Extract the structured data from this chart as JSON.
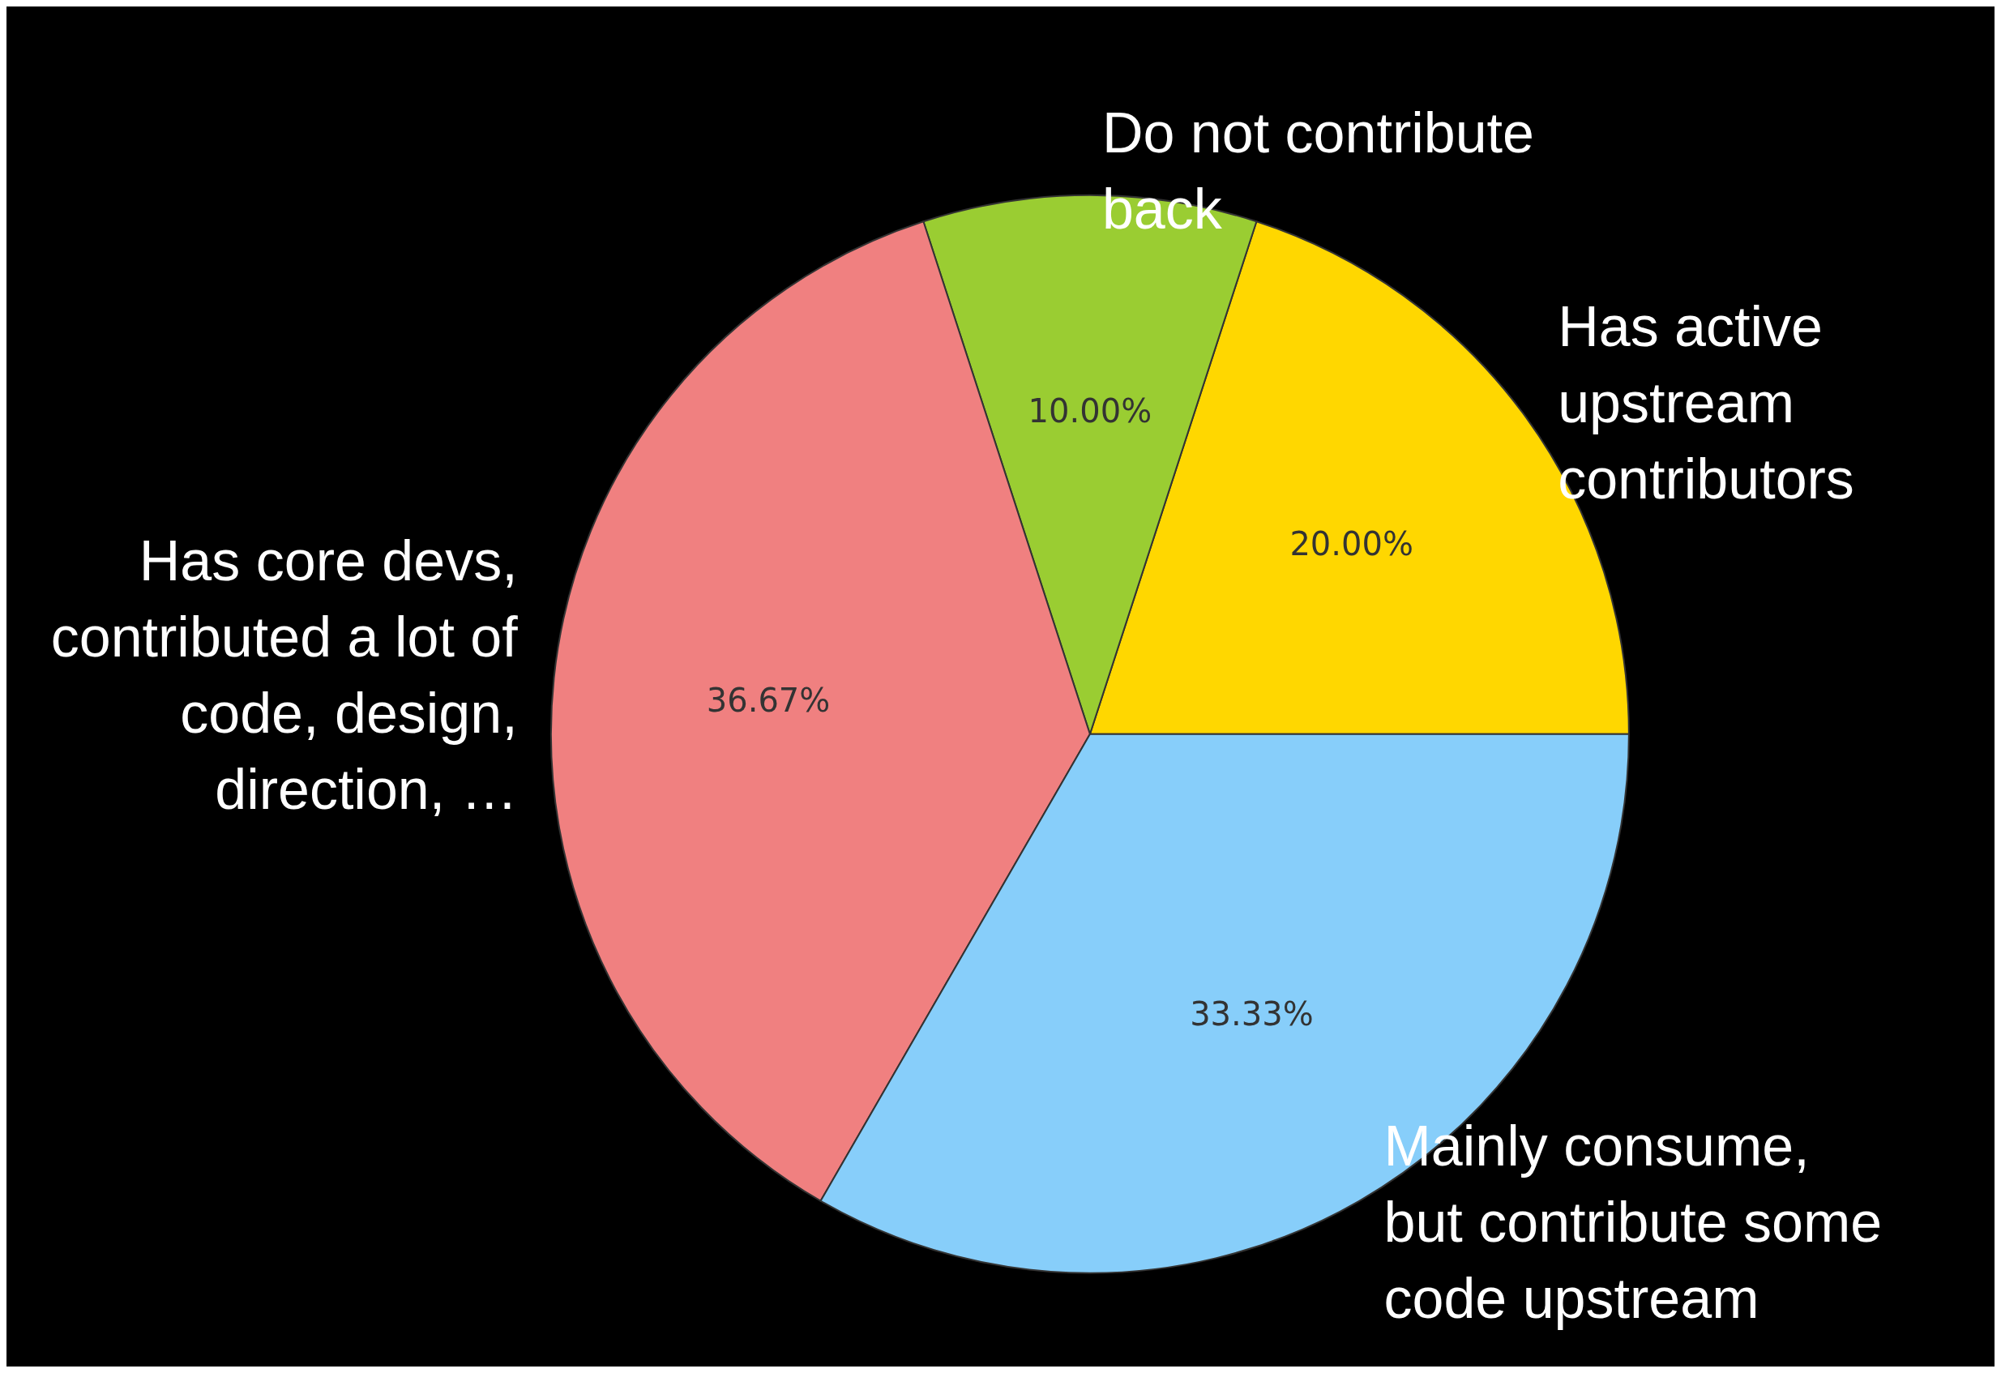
{
  "chart_data": {
    "type": "pie",
    "categories": [
      "Has active\nupstream\ncontributors",
      "Do not contribute\nback",
      "Has core devs,\ncontributed a lot of\ncode, design,\ndirection, …",
      "Mainly consume,\nbut contribute some\ncode upstream"
    ],
    "values": [
      20,
      10,
      36.67,
      33.33
    ],
    "colors": [
      "#ffd700",
      "#9acd32",
      "#f08080",
      "#87cefa"
    ],
    "value_labels": [
      "20.00%",
      "10.00%",
      "36.67%",
      "33.33%"
    ]
  }
}
